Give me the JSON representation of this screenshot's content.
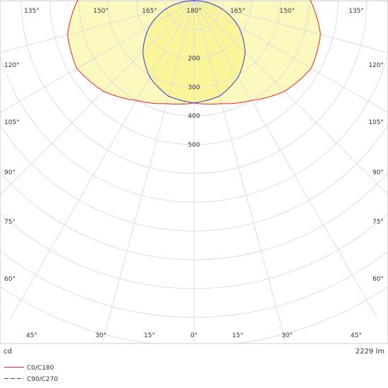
{
  "chart_data": {
    "type": "polar",
    "unit_label": "cd",
    "flux_label": "2229 lm",
    "radial_axis": {
      "max": 500,
      "ticks": [
        100,
        200,
        300,
        400,
        500
      ],
      "tick_labels": [
        "200",
        "300",
        "400",
        "500"
      ],
      "tick_label_values": [
        200,
        300,
        400,
        500
      ]
    },
    "angle_labels": {
      "bottom": [
        "45°",
        "30°",
        "15°",
        "0°",
        "15°",
        "30°",
        "45°"
      ],
      "left": [
        "60°",
        "75°",
        "90°",
        "105°",
        "120°"
      ],
      "right": [
        "60°",
        "75°",
        "90°",
        "105°",
        "120°"
      ],
      "top": [
        "135°",
        "150°",
        "165°",
        "180°",
        "165°",
        "150°",
        "135°"
      ]
    },
    "grid": true,
    "legend_position": "bottom-left",
    "series": [
      {
        "name": "C0/C180",
        "color": "#ee2222",
        "fill": "#fbf7a8",
        "gamma": [
          0,
          15,
          30,
          45,
          60,
          75,
          90,
          105,
          120,
          135,
          150,
          160,
          165,
          170,
          175,
          180
        ],
        "values": [
          355,
          370,
          400,
          445,
          470,
          455,
          405,
          340,
          270,
          195,
          115,
          55,
          25,
          10,
          30,
          55
        ]
      },
      {
        "name": "C90/C270",
        "color": "#3333cc",
        "dash": true,
        "fill": "#fbf59a",
        "gamma": [
          0,
          15,
          30,
          45,
          60,
          75,
          90,
          105,
          120,
          135,
          150,
          165,
          170,
          175,
          180
        ],
        "values": [
          355,
          343,
          307,
          251,
          178,
          93,
          3,
          0,
          0,
          0,
          0,
          0,
          15,
          30,
          50
        ]
      }
    ]
  }
}
